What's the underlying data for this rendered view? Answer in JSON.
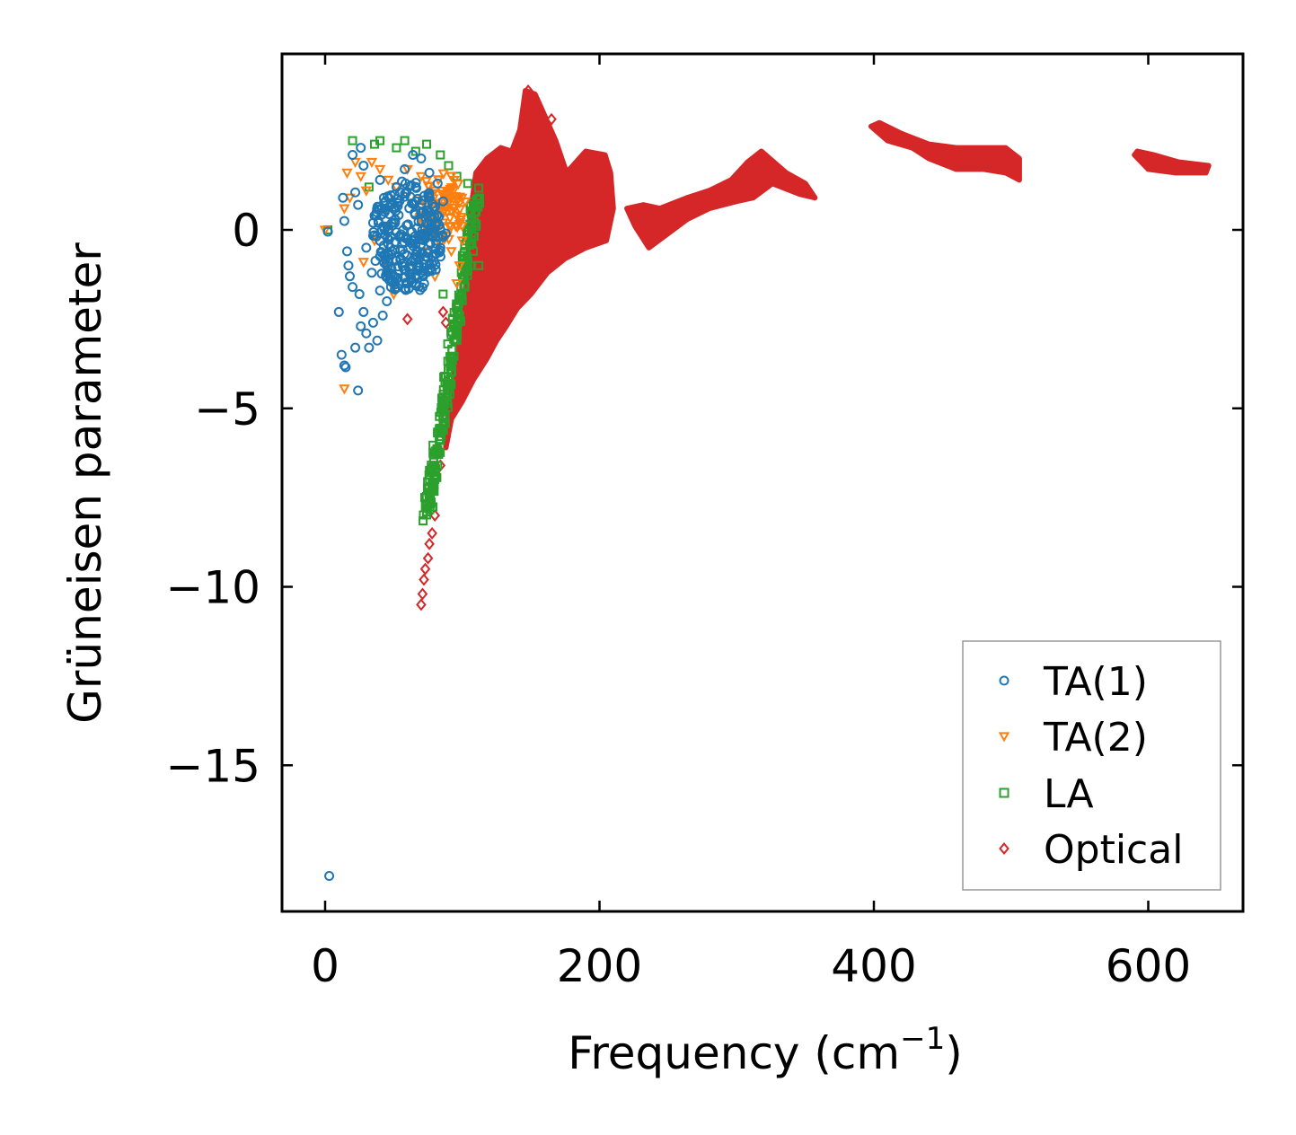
{
  "chart_data": {
    "type": "scatter",
    "xlabel": "Frequency (cm",
    "xlabel_sup": "−1",
    "xlabel_end": ")",
    "ylabel": "Grüneisen parameter",
    "xlim": [
      -32,
      670
    ],
    "ylim": [
      -19,
      5
    ],
    "xticks": [
      0,
      200,
      400,
      600
    ],
    "xtick_labels": [
      "0",
      "200",
      "400",
      "600"
    ],
    "yticks": [
      0,
      -5,
      -10,
      -15
    ],
    "ytick_labels": [
      "0",
      "−5",
      "−10",
      "−15"
    ],
    "legend_position": "lower-right",
    "series": [
      {
        "name": "TA(1)",
        "marker": "circle",
        "color": "#1f77b4",
        "points": [
          [
            3,
            -18.1
          ],
          [
            2,
            -0.05
          ],
          [
            10,
            -2.3
          ],
          [
            12,
            -3.5
          ],
          [
            14,
            -3.8
          ],
          [
            15,
            -3.85
          ],
          [
            22,
            -3.3
          ],
          [
            24,
            -4.5
          ],
          [
            13,
            0.9
          ],
          [
            14,
            0.25
          ],
          [
            16,
            -0.6
          ],
          [
            17,
            -1.0
          ],
          [
            20,
            2.1
          ],
          [
            22,
            1.05
          ],
          [
            24,
            0.7
          ],
          [
            18,
            -1.3
          ],
          [
            20,
            -1.6
          ],
          [
            25,
            -1.8
          ],
          [
            26,
            -2.7
          ],
          [
            28,
            -2.3
          ],
          [
            30,
            -2.9
          ],
          [
            32,
            -3.3
          ],
          [
            35,
            -2.6
          ],
          [
            38,
            -3.1
          ],
          [
            30,
            -0.5
          ],
          [
            34,
            -1.2
          ],
          [
            40,
            -1.7
          ],
          [
            42,
            -2.4
          ],
          [
            45,
            -2.0
          ],
          [
            48,
            -1.6
          ],
          [
            36,
            0.4
          ],
          [
            44,
            0.8
          ],
          [
            52,
            1.2
          ],
          [
            58,
            1.7
          ],
          [
            64,
            2.1
          ],
          [
            70,
            2.0
          ],
          [
            76,
            1.6
          ],
          [
            82,
            1.3
          ],
          [
            86,
            0.8
          ],
          [
            88,
            -0.1
          ],
          [
            46,
            -0.4
          ],
          [
            55,
            -0.8
          ],
          [
            62,
            -1.1
          ],
          [
            66,
            -0.4
          ],
          [
            72,
            -0.2
          ],
          [
            84,
            -0.5
          ],
          [
            28,
            1.8
          ],
          [
            26,
            2.3
          ],
          [
            40,
            1.4
          ],
          [
            50,
            0.2
          ]
        ],
        "cluster": {
          "cx": 60,
          "cy": -0.2,
          "rx": 26,
          "ry": 1.6,
          "n": 260
        }
      },
      {
        "name": "TA(2)",
        "marker": "triangle-down",
        "color": "#ff7f0e",
        "points": [
          [
            0,
            0.0
          ],
          [
            14,
            -4.45
          ],
          [
            14,
            0.6
          ],
          [
            16,
            1.6
          ],
          [
            18,
            0.9
          ],
          [
            22,
            1.9
          ],
          [
            26,
            1.5
          ],
          [
            30,
            1.1
          ],
          [
            34,
            1.9
          ],
          [
            40,
            1.7
          ],
          [
            46,
            1.4
          ],
          [
            52,
            1.2
          ],
          [
            60,
            1.7
          ],
          [
            70,
            1.5
          ],
          [
            80,
            1.1
          ],
          [
            90,
            0.9
          ],
          [
            96,
            0.4
          ],
          [
            100,
            -0.3
          ],
          [
            98,
            -1.0
          ],
          [
            96,
            -1.5
          ],
          [
            92,
            -0.6
          ],
          [
            86,
            0.2
          ],
          [
            50,
            -1.8
          ],
          [
            44,
            -0.9
          ],
          [
            36,
            -0.3
          ],
          [
            28,
            -0.9
          ],
          [
            80,
            -1.3
          ],
          [
            75,
            -0.6
          ]
        ],
        "cluster": {
          "cx": 85,
          "cy": 0.6,
          "rx": 18,
          "ry": 1.0,
          "n": 90
        }
      },
      {
        "name": "LA",
        "marker": "square",
        "color": "#2ca02c",
        "points": [
          [
            2,
            0.0
          ],
          [
            20,
            2.5
          ],
          [
            32,
            1.2
          ],
          [
            36,
            2.4
          ],
          [
            40,
            2.5
          ],
          [
            52,
            2.3
          ],
          [
            58,
            2.5
          ],
          [
            66,
            2.2
          ],
          [
            74,
            2.4
          ],
          [
            84,
            2.1
          ],
          [
            90,
            1.8
          ],
          [
            96,
            1.5
          ],
          [
            104,
            1.3
          ],
          [
            108,
            0.7
          ],
          [
            110,
            0.1
          ],
          [
            108,
            -0.6
          ],
          [
            106,
            -1.0
          ],
          [
            102,
            -1.6
          ],
          [
            98,
            -2.4
          ],
          [
            96,
            -3.1
          ],
          [
            92,
            -3.6
          ],
          [
            90,
            -4.3
          ],
          [
            86,
            -5.2
          ],
          [
            84,
            -5.9
          ],
          [
            82,
            -6.6
          ],
          [
            78,
            -7.1
          ],
          [
            76,
            -7.6
          ],
          [
            74,
            -7.9
          ],
          [
            86,
            -1.8
          ],
          [
            112,
            -1.0
          ]
        ],
        "band": {
          "x0": 110,
          "y0": 1.0,
          "x1": 74,
          "y1": -8.0,
          "w": 6,
          "n": 220
        }
      },
      {
        "name": "Optical",
        "marker": "diamond",
        "color": "#d62728",
        "points": [
          [
            70,
            -10.5
          ],
          [
            71,
            -10.2
          ],
          [
            72,
            -9.8
          ],
          [
            73,
            -9.5
          ],
          [
            75,
            -9.2
          ],
          [
            76,
            -8.8
          ],
          [
            78,
            -8.5
          ],
          [
            80,
            -8.0
          ],
          [
            84,
            -6.6
          ],
          [
            88,
            -5.8
          ],
          [
            92,
            -5.1
          ],
          [
            86,
            -2.3
          ],
          [
            88,
            -2.6
          ],
          [
            165,
            3.1
          ],
          [
            148,
            3.9
          ],
          [
            60,
            -2.5
          ]
        ],
        "blob": [
          [
            88,
            -6.1
          ],
          [
            92,
            -5.3
          ],
          [
            100,
            -4.8
          ],
          [
            108,
            -4.2
          ],
          [
            118,
            -3.6
          ],
          [
            125,
            -3.1
          ],
          [
            132,
            -2.7
          ],
          [
            140,
            -2.2
          ],
          [
            150,
            -1.8
          ],
          [
            162,
            -1.2
          ],
          [
            175,
            -0.8
          ],
          [
            190,
            -0.5
          ],
          [
            205,
            -0.3
          ],
          [
            210,
            0.6
          ],
          [
            208,
            1.6
          ],
          [
            204,
            2.1
          ],
          [
            190,
            2.2
          ],
          [
            176,
            1.6
          ],
          [
            168,
            2.5
          ],
          [
            160,
            3.2
          ],
          [
            153,
            3.8
          ],
          [
            146,
            3.9
          ],
          [
            142,
            2.8
          ],
          [
            136,
            2.2
          ],
          [
            128,
            2.3
          ],
          [
            118,
            2.0
          ],
          [
            110,
            1.6
          ],
          [
            106,
            0.5
          ],
          [
            104,
            -1.0
          ],
          [
            100,
            -2.5
          ],
          [
            95,
            -3.8
          ],
          [
            90,
            -5.0
          ]
        ],
        "bands": [
          [
            [
              220,
              0.6
            ],
            [
              226,
              0.1
            ],
            [
              236,
              -0.5
            ],
            [
              250,
              -0.1
            ],
            [
              264,
              0.3
            ],
            [
              280,
              0.6
            ],
            [
              300,
              0.8
            ],
            [
              312,
              0.9
            ],
            [
              326,
              1.3
            ],
            [
              346,
              1.0
            ],
            [
              357,
              0.9
            ],
            [
              350,
              1.3
            ],
            [
              336,
              1.6
            ],
            [
              318,
              2.2
            ],
            [
              308,
              1.9
            ],
            [
              296,
              1.4
            ],
            [
              280,
              1.1
            ],
            [
              264,
              0.9
            ],
            [
              244,
              0.6
            ],
            [
              232,
              0.7
            ]
          ],
          [
            [
              398,
              2.9
            ],
            [
              410,
              2.5
            ],
            [
              428,
              2.3
            ],
            [
              440,
              2.0
            ],
            [
              460,
              1.7
            ],
            [
              480,
              1.7
            ],
            [
              496,
              1.6
            ],
            [
              506,
              1.4
            ],
            [
              506,
              2.0
            ],
            [
              496,
              2.3
            ],
            [
              480,
              2.3
            ],
            [
              460,
              2.3
            ],
            [
              440,
              2.4
            ],
            [
              420,
              2.7
            ],
            [
              404,
              3.0
            ]
          ],
          [
            [
              590,
              2.1
            ],
            [
              600,
              1.7
            ],
            [
              620,
              1.6
            ],
            [
              642,
              1.6
            ],
            [
              644,
              1.8
            ],
            [
              622,
              1.9
            ],
            [
              604,
              2.1
            ],
            [
              592,
              2.2
            ]
          ]
        ]
      }
    ]
  }
}
